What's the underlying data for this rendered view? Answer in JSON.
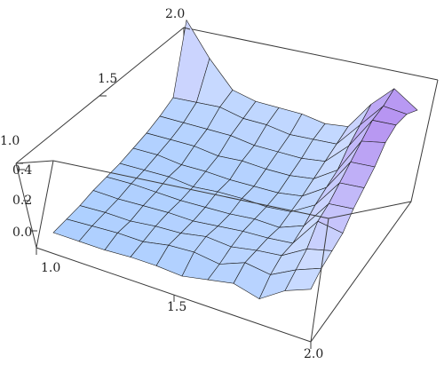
{
  "chart_data": {
    "type": "surface3d",
    "title": "",
    "xlabel": "",
    "ylabel": "",
    "zlabel": "",
    "x_range": [
      1.0,
      2.0
    ],
    "y_range": [
      1.0,
      2.0
    ],
    "z_range": [
      -0.1,
      0.5
    ],
    "x_ticks": [
      "1.0",
      "1.5",
      "2.0"
    ],
    "y_ticks": [
      "1.0",
      "1.5",
      "2.0"
    ],
    "z_ticks": [
      "0.0",
      "0.2",
      "0.4"
    ],
    "grid": false,
    "colors": {
      "surface_low": "#9ec9ff",
      "surface_mid": "#c9dcff",
      "surface_high": "#b48cf0",
      "mesh": "#1a1a1a",
      "box": "#3a3a3a"
    },
    "surface_rows_y": [
      1.0,
      1.1,
      1.2,
      1.3,
      1.4,
      1.5,
      1.6,
      1.7,
      1.8,
      1.9,
      2.0
    ],
    "surface_cols_x": [
      1.0,
      1.1,
      1.2,
      1.3,
      1.4,
      1.5,
      1.6,
      1.7,
      1.8,
      1.9,
      2.0
    ],
    "z_values": [
      [
        0.0,
        0.0,
        0.0,
        0.01,
        0.01,
        0.0,
        0.03,
        0.06,
        0.02,
        0.12,
        0.18
      ],
      [
        0.0,
        0.01,
        0.02,
        0.02,
        0.05,
        0.06,
        0.04,
        0.1,
        0.08,
        0.16,
        0.22
      ],
      [
        0.0,
        0.01,
        0.01,
        0.03,
        0.04,
        0.07,
        0.06,
        0.09,
        0.11,
        0.2,
        0.24
      ],
      [
        0.01,
        0.01,
        0.02,
        0.03,
        0.03,
        0.05,
        0.07,
        0.08,
        0.1,
        0.28,
        0.26
      ],
      [
        0.01,
        0.02,
        0.02,
        0.02,
        0.03,
        0.04,
        0.06,
        0.06,
        0.12,
        0.3,
        0.32
      ],
      [
        0.01,
        0.02,
        0.03,
        0.02,
        0.04,
        0.05,
        0.05,
        0.07,
        0.16,
        0.34,
        0.36
      ],
      [
        0.02,
        0.03,
        0.02,
        0.03,
        0.03,
        0.04,
        0.05,
        0.08,
        0.18,
        0.38,
        0.4
      ],
      [
        0.03,
        0.04,
        0.05,
        0.04,
        0.06,
        0.06,
        0.07,
        0.1,
        0.2,
        0.42,
        0.46
      ],
      [
        0.05,
        0.06,
        0.07,
        0.08,
        0.07,
        0.08,
        0.09,
        0.12,
        0.26,
        0.46,
        0.48
      ],
      [
        0.08,
        0.1,
        0.12,
        0.1,
        0.11,
        0.1,
        0.12,
        0.14,
        0.3,
        0.46,
        0.46
      ],
      [
        0.46,
        0.28,
        0.14,
        0.12,
        0.13,
        0.14,
        0.13,
        0.16,
        0.34,
        0.48,
        0.4
      ]
    ]
  }
}
